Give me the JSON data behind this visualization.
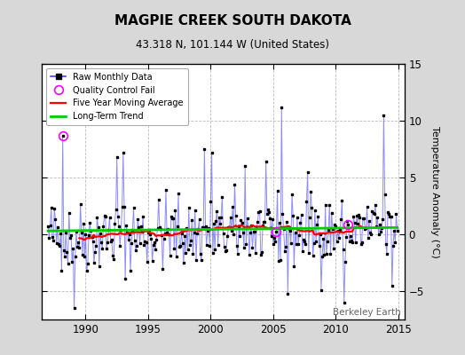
{
  "title": "MAGPIE CREEK SOUTH DAKOTA",
  "subtitle": "43.318 N, 101.144 W (United States)",
  "ylabel": "Temperature Anomaly (°C)",
  "watermark": "Berkeley Earth",
  "xlim": [
    1986.5,
    2015.5
  ],
  "ylim": [
    -7.5,
    12.5
  ],
  "yticks": [
    -5,
    0,
    5,
    10,
    15
  ],
  "xticks": [
    1990,
    1995,
    2000,
    2005,
    2010,
    2015
  ],
  "background_color": "#d8d8d8",
  "plot_background": "#ffffff",
  "seed": 42
}
